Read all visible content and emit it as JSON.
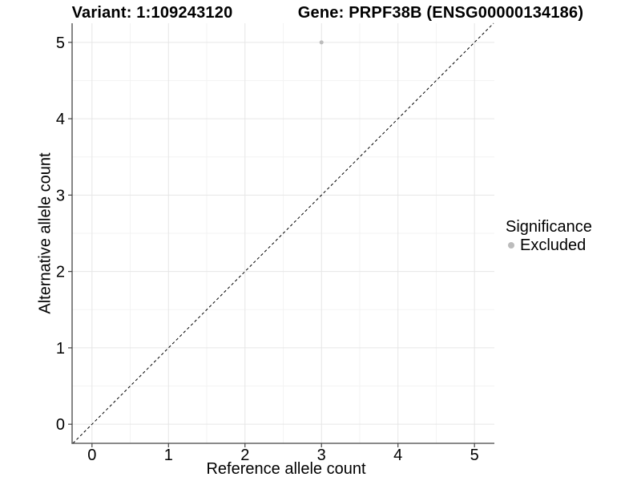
{
  "chart_data": {
    "type": "scatter",
    "title_left": "Variant: 1:109243120",
    "title_right": "Gene: PRPF38B (ENSG00000134186)",
    "xlabel": "Reference allele count",
    "ylabel": "Alternative allele count",
    "xlim": [
      -0.26,
      5.26
    ],
    "ylim": [
      -0.25,
      5.25
    ],
    "x_ticks": [
      0,
      1,
      2,
      3,
      4,
      5
    ],
    "y_ticks": [
      0,
      1,
      2,
      3,
      4,
      5
    ],
    "minor_ticks_x": [
      0.5,
      1.5,
      2.5,
      3.5,
      4.5
    ],
    "minor_ticks_y": [
      0.5,
      1.5,
      2.5,
      3.5,
      4.5
    ],
    "grid": true,
    "points": [
      {
        "x": 3,
        "y": 5,
        "series": "Excluded"
      }
    ],
    "reference_line": {
      "slope": 1,
      "intercept": 0,
      "style": "dashed",
      "color": "#000000"
    },
    "legend": {
      "title": "Significance",
      "position": "right",
      "entries": [
        {
          "label": "Excluded",
          "color": "#bcbcbc"
        }
      ]
    },
    "colors": {
      "grid_major": "#e6e6e6",
      "grid_minor": "#f3f3f3",
      "axis": "#444444",
      "tick_text": "#000000",
      "point": "#bcbcbc"
    }
  }
}
